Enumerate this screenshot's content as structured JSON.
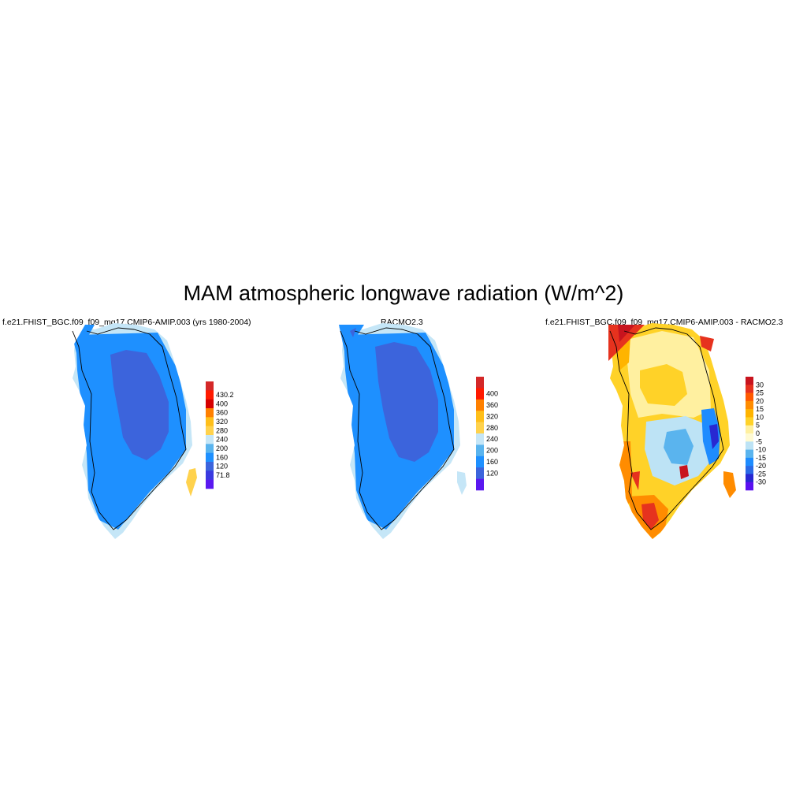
{
  "figure": {
    "title": "MAM atmospheric longwave radiation (W/m^2)"
  },
  "panels": [
    {
      "id": "model",
      "title": "f.e21.FHIST_BGC.f09_f09_mg17.CMIP6-AMIP.003 (yrs 1980-2004)",
      "colorbar": {
        "labels": [
          "430.2",
          "400",
          "360",
          "320",
          "280",
          "240",
          "200",
          "160",
          "120",
          "71.8"
        ],
        "colors": [
          "#d42828",
          "#ff1a00",
          "#d60000",
          "#ff8000",
          "#ffbf1a",
          "#ffd24d",
          "#c5e6f7",
          "#5ab4ee",
          "#1e90ff",
          "#3c64dc",
          "#3a3ae0",
          "#5a18f0"
        ]
      }
    },
    {
      "id": "racmo",
      "title": "RACMO2.3",
      "colorbar": {
        "labels": [
          "400",
          "360",
          "320",
          "280",
          "240",
          "200",
          "160",
          "120"
        ],
        "colors": [
          "#d42828",
          "#ff1a00",
          "#ff8000",
          "#ffbf1a",
          "#ffd24d",
          "#c5e6f7",
          "#5ab4ee",
          "#1e90ff",
          "#3c64dc",
          "#5a18f0"
        ]
      }
    },
    {
      "id": "diff",
      "title": "f.e21.FHIST_BGC.f09_f09_mg17.CMIP6-AMIP.003 - RACMO2.3",
      "colorbar": {
        "labels": [
          "30",
          "25",
          "20",
          "15",
          "10",
          "5",
          "0",
          "-5",
          "-10",
          "-15",
          "-20",
          "-25",
          "-30"
        ],
        "colors": [
          "#c8141e",
          "#e6321e",
          "#ff5a00",
          "#ff8c00",
          "#ffb400",
          "#ffd228",
          "#fff0a0",
          "#fffad2",
          "#bde3f5",
          "#5ab4ee",
          "#1e8cff",
          "#2a6ae6",
          "#2828d2",
          "#5a10f0"
        ]
      }
    }
  ]
}
